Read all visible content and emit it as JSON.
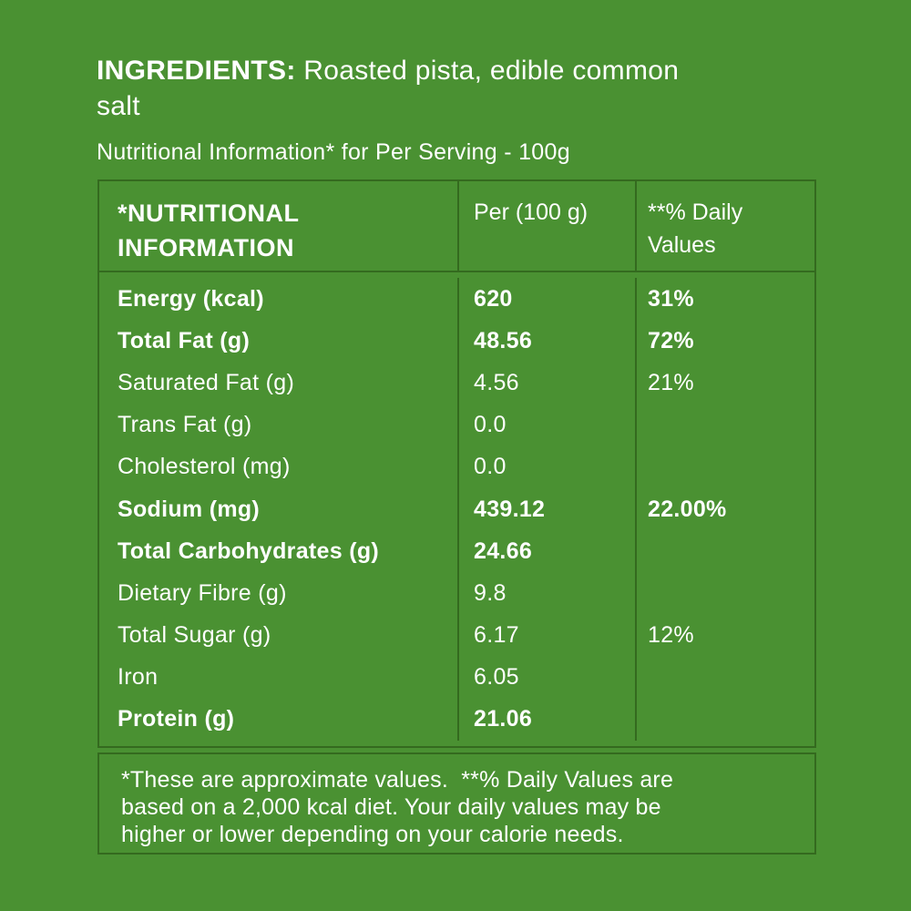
{
  "colors": {
    "background": "#4a9132",
    "border": "#346a1f",
    "text": "#ffffff"
  },
  "ingredients": {
    "label": "INGREDIENTS:",
    "text": " Roasted pista, edible common salt"
  },
  "subtitle": "Nutritional Information* for Per Serving - 100g",
  "table": {
    "headers": {
      "col1": "*NUTRITIONAL INFORMATION",
      "col2": "Per (100 g)",
      "col3": "**% Daily Values"
    },
    "rows": [
      {
        "name": "Energy (kcal)",
        "per": "620",
        "daily": "31%",
        "bold": true
      },
      {
        "name": "Total Fat (g)",
        "per": "48.56",
        "daily": "72%",
        "bold": true
      },
      {
        "name": "Saturated Fat (g)",
        "per": "4.56",
        "daily": "21%",
        "bold": false
      },
      {
        "name": "Trans Fat (g)",
        "per": "0.0",
        "daily": "",
        "bold": false
      },
      {
        "name": "Cholesterol (mg)",
        "per": "0.0",
        "daily": "",
        "bold": false
      },
      {
        "name": "Sodium (mg)",
        "per": "439.12",
        "daily": "22.00%",
        "bold": true
      },
      {
        "name": "Total Carbohydrates (g)",
        "per": "24.66",
        "daily": "",
        "bold": true
      },
      {
        "name": "Dietary Fibre (g)",
        "per": "9.8",
        "daily": "",
        "bold": false
      },
      {
        "name": "Total Sugar (g)",
        "per": "6.17",
        "daily": "12%",
        "bold": false
      },
      {
        "name": "Iron",
        "per": "6.05",
        "daily": "",
        "bold": false
      },
      {
        "name": "Protein (g)",
        "per": "21.06",
        "daily": "",
        "bold": true
      }
    ]
  },
  "footnote": {
    "lines": [
      "*These are approximate values.  **% Daily Values are",
      "based on a 2,000 kcal diet. Your daily values may be",
      "higher or lower depending on your calorie needs."
    ]
  }
}
